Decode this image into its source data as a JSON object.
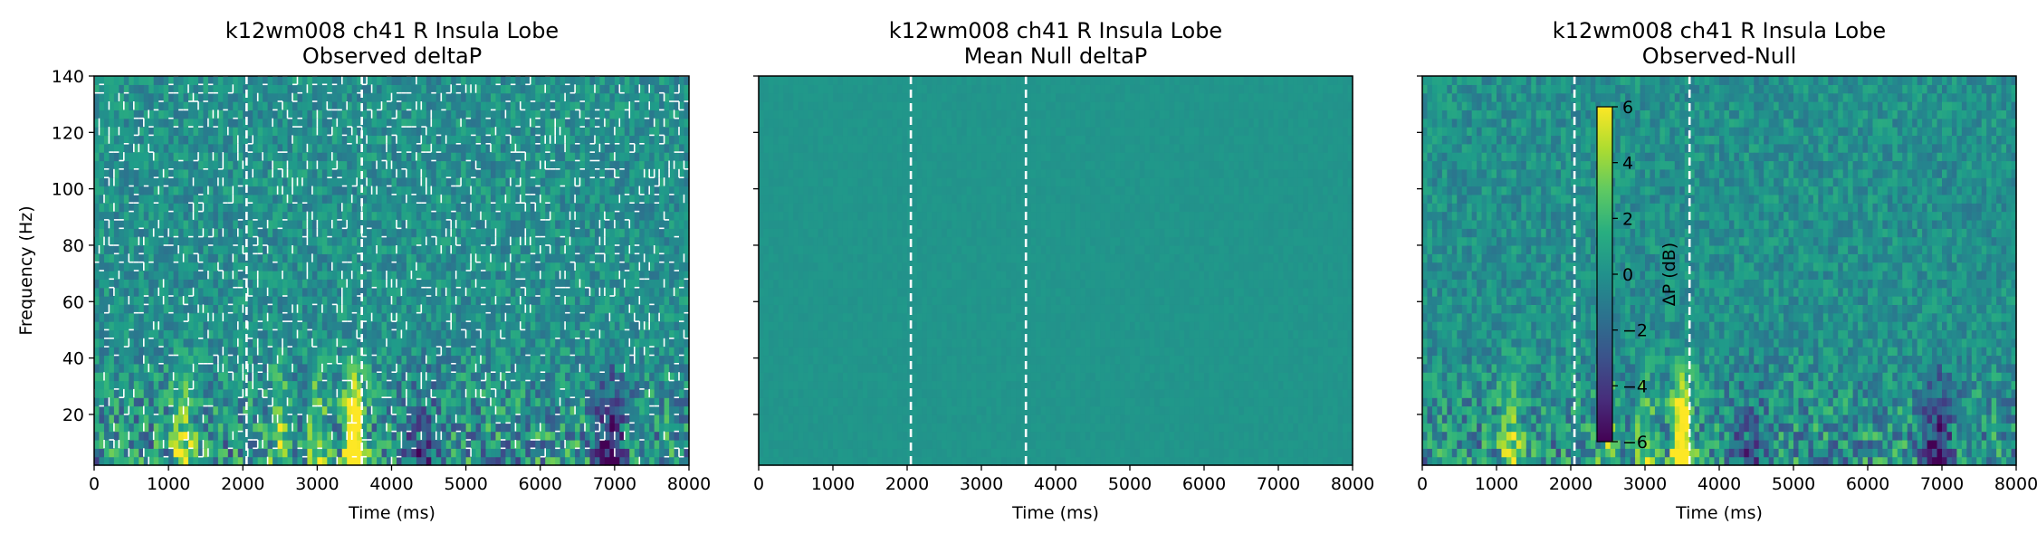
{
  "chart_data": [
    {
      "type": "heatmap",
      "title_line1": "k12wm008 ch41 R Insula Lobe",
      "title_line2": "Observed deltaP",
      "xlabel": "Time (ms)",
      "ylabel": "Frequency (Hz)",
      "xlim": [
        0,
        8000
      ],
      "ylim": [
        2,
        140
      ],
      "xticks": [
        "0",
        "1000",
        "2000",
        "3000",
        "4000",
        "5000",
        "6000",
        "7000",
        "8000"
      ],
      "yticks": [
        "20",
        "40",
        "60",
        "80",
        "100",
        "120",
        "140"
      ],
      "xtick_values": [
        0,
        1000,
        2000,
        3000,
        4000,
        5000,
        6000,
        7000,
        8000
      ],
      "ytick_values": [
        20,
        40,
        60,
        80,
        100,
        120,
        140
      ],
      "colormap": "viridis",
      "event_lines_ms": [
        2050,
        3600
      ],
      "significance_contours": true
    },
    {
      "type": "heatmap",
      "title_line1": "k12wm008 ch41 R Insula Lobe",
      "title_line2": "Mean Null deltaP",
      "xlabel": "Time (ms)",
      "ylabel": "",
      "xlim": [
        0,
        8000
      ],
      "ylim": [
        2,
        140
      ],
      "xticks": [
        "0",
        "1000",
        "2000",
        "3000",
        "4000",
        "5000",
        "6000",
        "7000",
        "8000"
      ],
      "xtick_values": [
        0,
        1000,
        2000,
        3000,
        4000,
        5000,
        6000,
        7000,
        8000
      ],
      "ytick_values": [
        20,
        40,
        60,
        80,
        100,
        120,
        140
      ],
      "colormap": "viridis",
      "event_lines_ms": [
        2050,
        3600
      ]
    },
    {
      "type": "heatmap",
      "title_line1": "k12wm008 ch41 R Insula Lobe",
      "title_line2": "Observed-Null",
      "xlabel": "Time (ms)",
      "ylabel": "",
      "xlim": [
        0,
        8000
      ],
      "ylim": [
        2,
        140
      ],
      "xticks": [
        "0",
        "1000",
        "2000",
        "3000",
        "4000",
        "5000",
        "6000",
        "7000",
        "8000"
      ],
      "xtick_values": [
        0,
        1000,
        2000,
        3000,
        4000,
        5000,
        6000,
        7000,
        8000
      ],
      "ytick_values": [
        20,
        40,
        60,
        80,
        100,
        120,
        140
      ],
      "colormap": "viridis",
      "event_lines_ms": [
        2050,
        3600
      ],
      "colorbar": {
        "label": "ΔP (dB)",
        "range": [
          -6,
          6
        ],
        "ticks": [
          "6",
          "4",
          "2",
          "0",
          "−2",
          "−4",
          "−6"
        ],
        "tick_values": [
          6,
          4,
          2,
          0,
          -2,
          -4,
          -6
        ]
      }
    }
  ]
}
